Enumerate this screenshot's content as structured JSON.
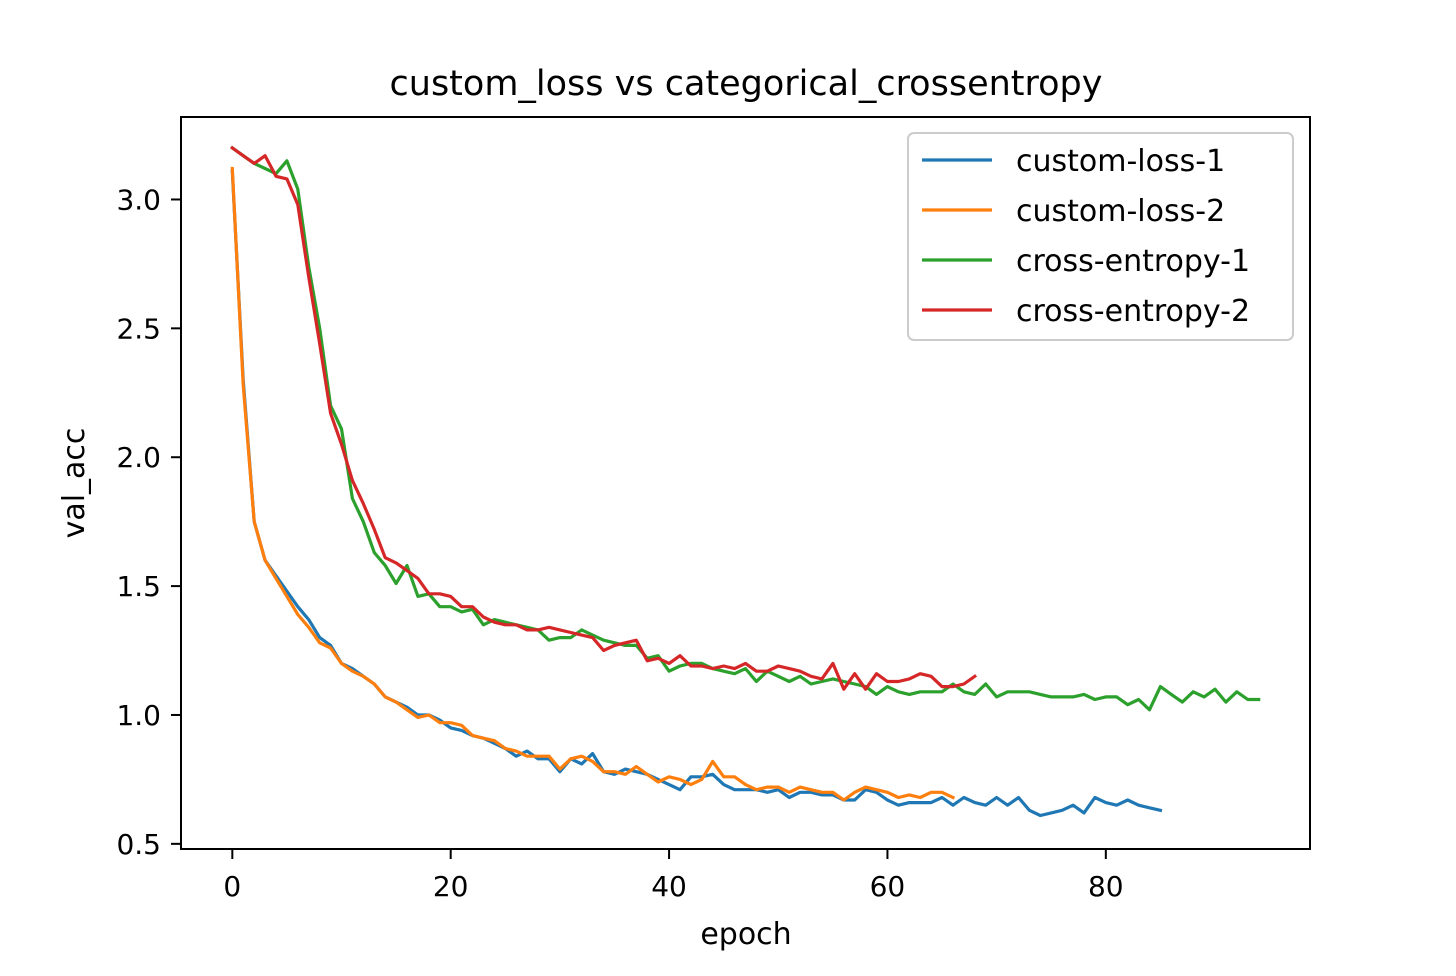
{
  "chart_data": {
    "type": "line",
    "title": "custom_loss vs categorical_crossentropy",
    "xlabel": "epoch",
    "ylabel": "val_acc",
    "xlim": [
      -4.7,
      98.7
    ],
    "ylim": [
      0.48,
      3.32
    ],
    "xticks": [
      0,
      20,
      40,
      60,
      80
    ],
    "xtick_labels": [
      "0",
      "20",
      "40",
      "60",
      "80"
    ],
    "yticks": [
      0.5,
      1.0,
      1.5,
      2.0,
      2.5,
      3.0
    ],
    "ytick_labels": [
      "0.5",
      "1.0",
      "1.5",
      "2.0",
      "2.5",
      "3.0"
    ],
    "grid": false,
    "legend_position": "top-right",
    "series": [
      {
        "name": "custom-loss-1",
        "color": "#1f77b4",
        "y": [
          3.11,
          2.3,
          1.75,
          1.6,
          1.54,
          1.48,
          1.42,
          1.37,
          1.3,
          1.27,
          1.2,
          1.18,
          1.15,
          1.12,
          1.07,
          1.05,
          1.03,
          1.0,
          1.0,
          0.98,
          0.95,
          0.94,
          0.92,
          0.91,
          0.89,
          0.87,
          0.84,
          0.86,
          0.83,
          0.83,
          0.78,
          0.83,
          0.81,
          0.85,
          0.78,
          0.77,
          0.79,
          0.78,
          0.77,
          0.75,
          0.73,
          0.71,
          0.76,
          0.76,
          0.77,
          0.73,
          0.71,
          0.71,
          0.71,
          0.7,
          0.71,
          0.68,
          0.7,
          0.7,
          0.69,
          0.69,
          0.67,
          0.67,
          0.71,
          0.7,
          0.67,
          0.65,
          0.66,
          0.66,
          0.66,
          0.68,
          0.65,
          0.68,
          0.66,
          0.65,
          0.68,
          0.65,
          0.68,
          0.63,
          0.61,
          0.62,
          0.63,
          0.65,
          0.62,
          0.68,
          0.66,
          0.65,
          0.67,
          0.65,
          0.64,
          0.63
        ]
      },
      {
        "name": "custom-loss-2",
        "color": "#ff7f0e",
        "y": [
          3.12,
          2.28,
          1.75,
          1.6,
          1.53,
          1.46,
          1.39,
          1.34,
          1.28,
          1.26,
          1.2,
          1.17,
          1.15,
          1.12,
          1.07,
          1.05,
          1.02,
          0.99,
          1.0,
          0.97,
          0.97,
          0.96,
          0.92,
          0.91,
          0.9,
          0.87,
          0.86,
          0.84,
          0.84,
          0.84,
          0.79,
          0.83,
          0.84,
          0.82,
          0.78,
          0.78,
          0.77,
          0.8,
          0.77,
          0.74,
          0.76,
          0.75,
          0.73,
          0.75,
          0.82,
          0.76,
          0.76,
          0.73,
          0.71,
          0.72,
          0.72,
          0.7,
          0.72,
          0.71,
          0.7,
          0.7,
          0.67,
          0.7,
          0.72,
          0.71,
          0.7,
          0.68,
          0.69,
          0.68,
          0.7,
          0.7,
          0.68
        ]
      },
      {
        "name": "cross-entropy-1",
        "color": "#2ca02c",
        "y": [
          3.2,
          3.17,
          3.14,
          3.12,
          3.1,
          3.15,
          3.04,
          2.74,
          2.5,
          2.2,
          2.11,
          1.84,
          1.75,
          1.63,
          1.58,
          1.51,
          1.58,
          1.46,
          1.47,
          1.42,
          1.42,
          1.4,
          1.41,
          1.35,
          1.37,
          1.36,
          1.35,
          1.34,
          1.33,
          1.29,
          1.3,
          1.3,
          1.33,
          1.31,
          1.29,
          1.28,
          1.27,
          1.27,
          1.22,
          1.23,
          1.17,
          1.19,
          1.2,
          1.2,
          1.18,
          1.17,
          1.16,
          1.18,
          1.13,
          1.17,
          1.15,
          1.13,
          1.15,
          1.12,
          1.13,
          1.14,
          1.13,
          1.12,
          1.11,
          1.08,
          1.11,
          1.09,
          1.08,
          1.09,
          1.09,
          1.09,
          1.12,
          1.09,
          1.08,
          1.12,
          1.07,
          1.09,
          1.09,
          1.09,
          1.08,
          1.07,
          1.07,
          1.07,
          1.08,
          1.06,
          1.07,
          1.07,
          1.04,
          1.06,
          1.02,
          1.11,
          1.08,
          1.05,
          1.09,
          1.07,
          1.1,
          1.05,
          1.09,
          1.06,
          1.06
        ]
      },
      {
        "name": "cross-entropy-2",
        "color": "#d62728",
        "y": [
          3.2,
          3.17,
          3.14,
          3.17,
          3.09,
          3.08,
          2.98,
          2.7,
          2.44,
          2.17,
          2.05,
          1.91,
          1.82,
          1.72,
          1.61,
          1.59,
          1.56,
          1.53,
          1.47,
          1.47,
          1.46,
          1.42,
          1.42,
          1.38,
          1.36,
          1.35,
          1.35,
          1.33,
          1.33,
          1.34,
          1.33,
          1.32,
          1.31,
          1.3,
          1.25,
          1.27,
          1.28,
          1.29,
          1.21,
          1.22,
          1.2,
          1.23,
          1.19,
          1.19,
          1.18,
          1.19,
          1.18,
          1.2,
          1.17,
          1.17,
          1.19,
          1.18,
          1.17,
          1.15,
          1.14,
          1.2,
          1.1,
          1.16,
          1.1,
          1.16,
          1.13,
          1.13,
          1.14,
          1.16,
          1.15,
          1.11,
          1.11,
          1.12,
          1.15
        ]
      }
    ]
  }
}
